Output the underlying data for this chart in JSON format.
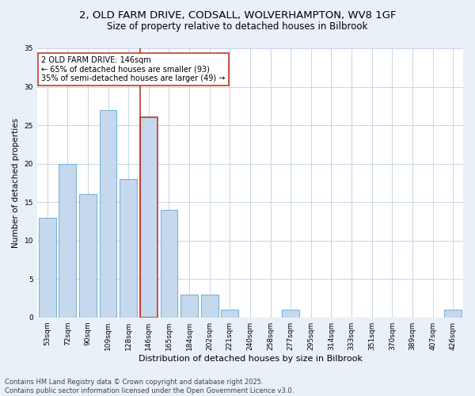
{
  "title1": "2, OLD FARM DRIVE, CODSALL, WOLVERHAMPTON, WV8 1GF",
  "title2": "Size of property relative to detached houses in Bilbrook",
  "xlabel": "Distribution of detached houses by size in Bilbrook",
  "ylabel": "Number of detached properties",
  "categories": [
    "53sqm",
    "72sqm",
    "90sqm",
    "109sqm",
    "128sqm",
    "146sqm",
    "165sqm",
    "184sqm",
    "202sqm",
    "221sqm",
    "240sqm",
    "258sqm",
    "277sqm",
    "295sqm",
    "314sqm",
    "333sqm",
    "351sqm",
    "370sqm",
    "389sqm",
    "407sqm",
    "426sqm"
  ],
  "values": [
    13,
    20,
    16,
    27,
    18,
    26,
    14,
    3,
    3,
    1,
    0,
    0,
    1,
    0,
    0,
    0,
    0,
    0,
    0,
    0,
    1
  ],
  "bar_color": "#c5d8ed",
  "bar_edge_color": "#7ab4d8",
  "highlight_bar_index": 5,
  "highlight_bar_edge_color": "#c0392b",
  "vline_color": "#c0392b",
  "annotation_text": "2 OLD FARM DRIVE: 146sqm\n← 65% of detached houses are smaller (93)\n35% of semi-detached houses are larger (49) →",
  "annotation_box_color": "white",
  "annotation_box_edge_color": "#c0392b",
  "ylim": [
    0,
    35
  ],
  "yticks": [
    0,
    5,
    10,
    15,
    20,
    25,
    30,
    35
  ],
  "footnote": "Contains HM Land Registry data © Crown copyright and database right 2025.\nContains public sector information licensed under the Open Government Licence v3.0.",
  "bg_color": "#eaf0f8",
  "plot_bg_color": "#ffffff",
  "grid_color": "#c8d4e8",
  "title_fontsize": 9.5,
  "subtitle_fontsize": 8.5,
  "tick_fontsize": 6.5,
  "ylabel_fontsize": 7.5,
  "xlabel_fontsize": 8,
  "annotation_fontsize": 7,
  "footnote_fontsize": 6
}
